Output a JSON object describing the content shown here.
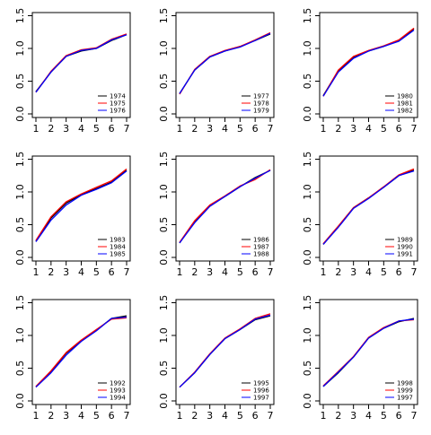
{
  "chart_data": [
    {
      "type": "line",
      "x": [
        1,
        2,
        3,
        4,
        5,
        6,
        7
      ],
      "xticks": [
        "1",
        "2",
        "3",
        "4",
        "5",
        "6",
        "7"
      ],
      "yticks": [
        "0.0",
        "0.5",
        "1.0",
        "1.5"
      ],
      "ylim": [
        0,
        1.6
      ],
      "legend_position": "bottom-right",
      "series": [
        {
          "name": "1974",
          "color": "#000000",
          "values": [
            0.34,
            0.64,
            0.88,
            0.96,
            1.0,
            1.12,
            1.21
          ]
        },
        {
          "name": "1975",
          "color": "#ff0000",
          "values": [
            0.33,
            0.65,
            0.89,
            0.98,
            1.01,
            1.14,
            1.22
          ]
        },
        {
          "name": "1976",
          "color": "#0000ff",
          "values": [
            0.33,
            0.64,
            0.88,
            0.97,
            1.0,
            1.13,
            1.21
          ]
        }
      ]
    },
    {
      "type": "line",
      "x": [
        1,
        2,
        3,
        4,
        5,
        6,
        7
      ],
      "xticks": [
        "1",
        "2",
        "3",
        "4",
        "5",
        "6",
        "7"
      ],
      "yticks": [
        "0.0",
        "0.5",
        "1.0",
        "1.5"
      ],
      "ylim": [
        0,
        1.6
      ],
      "legend_position": "bottom-right",
      "series": [
        {
          "name": "1977",
          "color": "#000000",
          "values": [
            0.31,
            0.67,
            0.87,
            0.96,
            1.03,
            1.12,
            1.22
          ]
        },
        {
          "name": "1978",
          "color": "#ff0000",
          "values": [
            0.3,
            0.68,
            0.88,
            0.97,
            1.03,
            1.13,
            1.24
          ]
        },
        {
          "name": "1979",
          "color": "#0000ff",
          "values": [
            0.31,
            0.67,
            0.87,
            0.96,
            1.02,
            1.12,
            1.23
          ]
        }
      ]
    },
    {
      "type": "line",
      "x": [
        1,
        2,
        3,
        4,
        5,
        6,
        7
      ],
      "xticks": [
        "1",
        "2",
        "3",
        "4",
        "5",
        "6",
        "7"
      ],
      "yticks": [
        "0.0",
        "0.5",
        "1.0",
        "1.5"
      ],
      "ylim": [
        0,
        1.6
      ],
      "legend_position": "bottom-right",
      "series": [
        {
          "name": "1980",
          "color": "#000000",
          "values": [
            0.28,
            0.66,
            0.86,
            0.96,
            1.03,
            1.12,
            1.3
          ]
        },
        {
          "name": "1981",
          "color": "#ff0000",
          "values": [
            0.27,
            0.67,
            0.88,
            0.97,
            1.04,
            1.13,
            1.31
          ]
        },
        {
          "name": "1982",
          "color": "#0000ff",
          "values": [
            0.27,
            0.64,
            0.85,
            0.96,
            1.03,
            1.11,
            1.28
          ]
        }
      ]
    },
    {
      "type": "line",
      "x": [
        1,
        2,
        3,
        4,
        5,
        6,
        7
      ],
      "xticks": [
        "1",
        "2",
        "3",
        "4",
        "5",
        "6",
        "7"
      ],
      "yticks": [
        "0.0",
        "0.5",
        "1.0",
        "1.5"
      ],
      "ylim": [
        0,
        1.6
      ],
      "legend_position": "bottom-right",
      "series": [
        {
          "name": "1983",
          "color": "#000000",
          "values": [
            0.25,
            0.6,
            0.83,
            0.96,
            1.05,
            1.15,
            1.33
          ]
        },
        {
          "name": "1984",
          "color": "#ff0000",
          "values": [
            0.26,
            0.62,
            0.85,
            0.97,
            1.07,
            1.17,
            1.35
          ]
        },
        {
          "name": "1985",
          "color": "#0000ff",
          "values": [
            0.24,
            0.57,
            0.8,
            0.95,
            1.04,
            1.14,
            1.32
          ]
        }
      ]
    },
    {
      "type": "line",
      "x": [
        1,
        2,
        3,
        4,
        5,
        6,
        7
      ],
      "xticks": [
        "1",
        "2",
        "3",
        "4",
        "5",
        "6",
        "7"
      ],
      "yticks": [
        "0.0",
        "0.5",
        "1.0",
        "1.5"
      ],
      "ylim": [
        0,
        1.6
      ],
      "legend_position": "bottom-right",
      "series": [
        {
          "name": "1986",
          "color": "#000000",
          "values": [
            0.22,
            0.55,
            0.79,
            0.93,
            1.08,
            1.22,
            1.33
          ]
        },
        {
          "name": "1987",
          "color": "#ff0000",
          "values": [
            0.23,
            0.56,
            0.8,
            0.94,
            1.09,
            1.19,
            1.34
          ]
        },
        {
          "name": "1988",
          "color": "#0000ff",
          "values": [
            0.22,
            0.53,
            0.78,
            0.93,
            1.08,
            1.21,
            1.33
          ]
        }
      ]
    },
    {
      "type": "line",
      "x": [
        1,
        2,
        3,
        4,
        5,
        6,
        7
      ],
      "xticks": [
        "1",
        "2",
        "3",
        "4",
        "5",
        "6",
        "7"
      ],
      "yticks": [
        "0.0",
        "0.5",
        "1.0",
        "1.5"
      ],
      "ylim": [
        0,
        1.6
      ],
      "legend_position": "bottom-right",
      "series": [
        {
          "name": "1989",
          "color": "#000000",
          "values": [
            0.2,
            0.47,
            0.76,
            0.91,
            1.07,
            1.25,
            1.33
          ]
        },
        {
          "name": "1990",
          "color": "#ff0000",
          "values": [
            0.21,
            0.48,
            0.76,
            0.91,
            1.08,
            1.26,
            1.35
          ]
        },
        {
          "name": "1991",
          "color": "#0000ff",
          "values": [
            0.2,
            0.46,
            0.75,
            0.9,
            1.07,
            1.25,
            1.32
          ]
        }
      ]
    },
    {
      "type": "line",
      "x": [
        1,
        2,
        3,
        4,
        5,
        6,
        7
      ],
      "xticks": [
        "1",
        "2",
        "3",
        "4",
        "5",
        "6",
        "7"
      ],
      "yticks": [
        "0.0",
        "0.5",
        "1.0",
        "1.5"
      ],
      "ylim": [
        0,
        1.6
      ],
      "legend_position": "bottom-right",
      "series": [
        {
          "name": "1992",
          "color": "#000000",
          "values": [
            0.22,
            0.45,
            0.73,
            0.92,
            1.08,
            1.26,
            1.3
          ]
        },
        {
          "name": "1993",
          "color": "#ff0000",
          "values": [
            0.22,
            0.46,
            0.74,
            0.93,
            1.09,
            1.25,
            1.27
          ]
        },
        {
          "name": "1994",
          "color": "#0000ff",
          "values": [
            0.21,
            0.43,
            0.7,
            0.91,
            1.07,
            1.26,
            1.28
          ]
        }
      ]
    },
    {
      "type": "line",
      "x": [
        1,
        2,
        3,
        4,
        5,
        6,
        7
      ],
      "xticks": [
        "1",
        "2",
        "3",
        "4",
        "5",
        "6",
        "7"
      ],
      "yticks": [
        "0.0",
        "0.5",
        "1.0",
        "1.5"
      ],
      "ylim": [
        0,
        1.6
      ],
      "legend_position": "bottom-right",
      "series": [
        {
          "name": "1995",
          "color": "#000000",
          "values": [
            0.21,
            0.43,
            0.71,
            0.95,
            1.09,
            1.24,
            1.3
          ]
        },
        {
          "name": "1996",
          "color": "#ff0000",
          "values": [
            0.21,
            0.44,
            0.72,
            0.96,
            1.1,
            1.26,
            1.33
          ]
        },
        {
          "name": "1997",
          "color": "#0000ff",
          "values": [
            0.21,
            0.43,
            0.71,
            0.95,
            1.09,
            1.25,
            1.31
          ]
        }
      ]
    },
    {
      "type": "line",
      "x": [
        1,
        2,
        3,
        4,
        5,
        6,
        7
      ],
      "xticks": [
        "1",
        "2",
        "3",
        "4",
        "5",
        "6",
        "7"
      ],
      "yticks": [
        "0.0",
        "0.5",
        "1.0",
        "1.5"
      ],
      "ylim": [
        0,
        1.6
      ],
      "legend_position": "bottom-right",
      "series": [
        {
          "name": "1998",
          "color": "#000000",
          "values": [
            0.22,
            0.43,
            0.67,
            0.96,
            1.11,
            1.21,
            1.26
          ]
        },
        {
          "name": "1999",
          "color": "#ff0000",
          "values": [
            0.23,
            0.45,
            0.68,
            0.97,
            1.12,
            1.22,
            1.24
          ]
        },
        {
          "name": "1997",
          "color": "#0000ff",
          "values": [
            0.22,
            0.44,
            0.67,
            0.96,
            1.11,
            1.22,
            1.25
          ]
        }
      ]
    }
  ]
}
